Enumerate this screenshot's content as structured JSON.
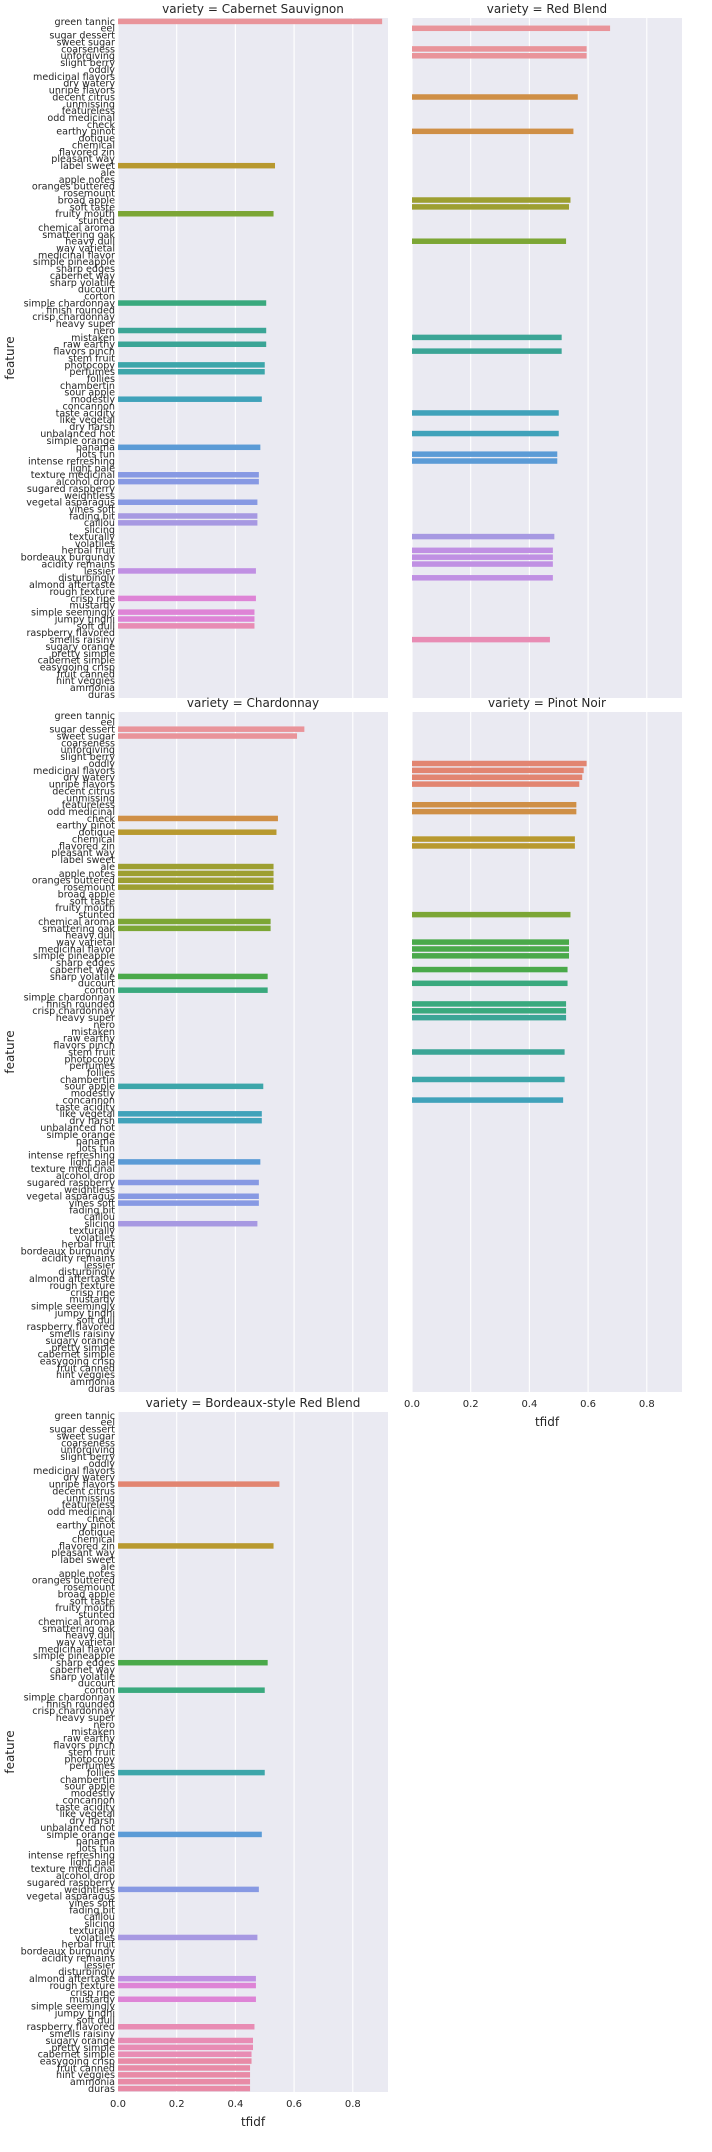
{
  "figure": {
    "x_label": "tfidf",
    "y_label": "feature",
    "panel_title_prefix": "variety = ",
    "facet_column_count": 2,
    "background_color": "#eaeaf2",
    "grid_color": "#ffffff"
  },
  "chart_data": {
    "type": "bar",
    "orientation": "horizontal",
    "x_ticks": [
      0.0,
      0.2,
      0.4,
      0.6,
      0.8
    ],
    "xlim": [
      0,
      0.92
    ],
    "grid": true,
    "categories": [
      "green tannic",
      "eel",
      "sugar dessert",
      "sweet sugar",
      "coarseness",
      "unforgiving",
      "slight berry",
      "oddly",
      "medicinal flavors",
      "dry watery",
      "unripe flavors",
      "decent citrus",
      "unmissing",
      "featureless",
      "odd medicinal",
      "check",
      "earthy pinot",
      "dotique",
      "chemical",
      "flavored zin",
      "pleasant way",
      "label sweet",
      "ale",
      "apple notes",
      "oranges buttered",
      "rosemount",
      "broad apple",
      "soft taste",
      "fruity mouth",
      "stunted",
      "chemical aroma",
      "smattering oak",
      "heavy dull",
      "way varietal",
      "medicinal flavor",
      "simple pineapple",
      "sharp edges",
      "cabernet way",
      "sharp volatile",
      "ducourt",
      "corton",
      "simple chardonnay",
      "finish rounded",
      "crisp chardonnay",
      "heavy super",
      "nero",
      "mistaken",
      "raw earthy",
      "flavors pinch",
      "stem fruit",
      "photocopy",
      "perfumes",
      "follies",
      "chambertin",
      "sour apple",
      "modestly",
      "concannon",
      "taste acidity",
      "like vegetal",
      "dry harsh",
      "unbalanced hot",
      "simple orange",
      "panama",
      "lots fun",
      "intense refreshing",
      "light pale",
      "texture medicinal",
      "alcohol drop",
      "sugared raspberry",
      "weightless",
      "vegetal asparagus",
      "vines soft",
      "fading bit",
      "caillou",
      "slicing",
      "texturally",
      "volatiles",
      "herbal fruit",
      "bordeaux burgundy",
      "acidity remains",
      "lessier",
      "disturbingly",
      "almond aftertaste",
      "rough texture",
      "crisp ripe",
      "mustardy",
      "simple seemingly",
      "jumpy tinghi",
      "soft dull",
      "raspberry flavored",
      "smells raisiny",
      "sugary orange",
      "pretty simple",
      "cabernet simple",
      "easygoing crisp",
      "fruit canned",
      "hint veggies",
      "ammonia",
      "duras"
    ],
    "series": [
      {
        "name": "Cabernet Sauvignon",
        "values": {
          "green tannic": 0.9,
          "label sweet": 0.535,
          "fruity mouth": 0.53,
          "simple chardonnay": 0.505,
          "nero": 0.505,
          "raw earthy": 0.505,
          "photocopy": 0.5,
          "perfumes": 0.5,
          "modestly": 0.49,
          "panama": 0.485,
          "texture medicinal": 0.48,
          "alcohol drop": 0.48,
          "vegetal asparagus": 0.475,
          "fading bit": 0.475,
          "caillou": 0.475,
          "lessier": 0.47,
          "crisp ripe": 0.47,
          "simple seemingly": 0.465,
          "jumpy tinghi": 0.465,
          "soft dull": 0.465
        }
      },
      {
        "name": "Red Blend",
        "values": {
          "eel": 0.675,
          "coarseness": 0.595,
          "unforgiving": 0.595,
          "decent citrus": 0.565,
          "earthy pinot": 0.55,
          "broad apple": 0.54,
          "soft taste": 0.535,
          "heavy dull": 0.525,
          "mistaken": 0.51,
          "flavors pinch": 0.51,
          "taste acidity": 0.5,
          "unbalanced hot": 0.5,
          "lots fun": 0.495,
          "intense refreshing": 0.495,
          "texturally": 0.485,
          "herbal fruit": 0.48,
          "bordeaux burgundy": 0.48,
          "acidity remains": 0.48,
          "disturbingly": 0.48,
          "smells raisiny": 0.47
        }
      },
      {
        "name": "Chardonnay",
        "values": {
          "sugar dessert": 0.635,
          "sweet sugar": 0.61,
          "check": 0.545,
          "dotique": 0.54,
          "ale": 0.53,
          "apple notes": 0.53,
          "oranges buttered": 0.53,
          "rosemount": 0.53,
          "chemical aroma": 0.52,
          "smattering oak": 0.52,
          "sharp volatile": 0.51,
          "corton": 0.51,
          "sour apple": 0.495,
          "like vegetal": 0.49,
          "dry harsh": 0.49,
          "light pale": 0.485,
          "sugared raspberry": 0.48,
          "vegetal asparagus": 0.48,
          "vines soft": 0.48,
          "slicing": 0.475
        }
      },
      {
        "name": "Pinot Noir",
        "values": {
          "oddly": 0.595,
          "medicinal flavors": 0.585,
          "dry watery": 0.58,
          "unripe flavors": 0.57,
          "featureless": 0.56,
          "odd medicinal": 0.56,
          "chemical": 0.555,
          "flavored zin": 0.555,
          "stunted": 0.54,
          "way varietal": 0.535,
          "medicinal flavor": 0.535,
          "simple pineapple": 0.535,
          "cabernet way": 0.53,
          "ducourt": 0.53,
          "finish rounded": 0.525,
          "crisp chardonnay": 0.525,
          "heavy super": 0.525,
          "stem fruit": 0.52,
          "chambertin": 0.52,
          "concannon": 0.515
        }
      },
      {
        "name": "Bordeaux-style Red Blend",
        "values": {
          "unripe flavors": 0.55,
          "flavored zin": 0.53,
          "sharp edges": 0.51,
          "corton": 0.5,
          "follies": 0.5,
          "simple orange": 0.49,
          "weightless": 0.48,
          "volatiles": 0.475,
          "almond aftertaste": 0.47,
          "rough texture": 0.47,
          "mustardy": 0.47,
          "raspberry flavored": 0.465,
          "sugary orange": 0.46,
          "pretty simple": 0.46,
          "cabernet simple": 0.455,
          "easygoing crisp": 0.455,
          "fruit canned": 0.45,
          "hint veggies": 0.45,
          "ammonia": 0.45,
          "duras": 0.45
        }
      }
    ],
    "colors": [
      "#e9949a",
      "#e28571",
      "#cf8f46",
      "#b8992f",
      "#9d9f31",
      "#7ca635",
      "#4aa94a",
      "#3aa97e",
      "#3ba596",
      "#3da6aa",
      "#40a2ba",
      "#5b9bd6",
      "#8799e3",
      "#a799e2",
      "#c090e3",
      "#de84d6",
      "#e88cb4",
      "#e88aa6"
    ]
  }
}
